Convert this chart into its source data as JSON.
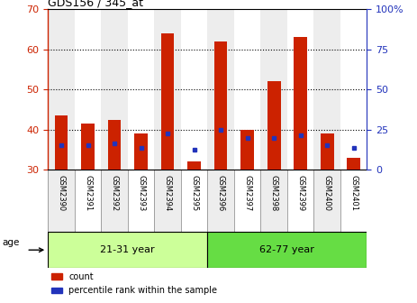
{
  "title": "GDS156 / 345_at",
  "samples": [
    "GSM2390",
    "GSM2391",
    "GSM2392",
    "GSM2393",
    "GSM2394",
    "GSM2395",
    "GSM2396",
    "GSM2397",
    "GSM2398",
    "GSM2399",
    "GSM2400",
    "GSM2401"
  ],
  "red_bar_top": [
    43.5,
    41.5,
    42.5,
    39.0,
    64.0,
    32.0,
    62.0,
    40.0,
    52.0,
    63.0,
    39.0,
    33.0
  ],
  "red_bar_bottom": 30.0,
  "blue_y": [
    36.0,
    36.0,
    36.5,
    35.5,
    39.0,
    35.0,
    40.0,
    38.0,
    38.0,
    38.5,
    36.0,
    35.5
  ],
  "ylim_left": [
    30,
    70
  ],
  "ylim_right": [
    0,
    100
  ],
  "yticks_left": [
    30,
    40,
    50,
    60,
    70
  ],
  "yticks_right": [
    0,
    25,
    50,
    75,
    100
  ],
  "ytick_labels_right": [
    "0",
    "25",
    "50",
    "75",
    "100%"
  ],
  "grid_lines": [
    40,
    50,
    60
  ],
  "group1_label": "21-31 year",
  "group2_label": "62-77 year",
  "group1_count": 6,
  "group2_count": 6,
  "age_label": "age",
  "legend_count": "count",
  "legend_percentile": "percentile rank within the sample",
  "red_color": "#CC2200",
  "blue_color": "#2233BB",
  "group1_bg": "#CCFF99",
  "group2_bg": "#66DD44",
  "col_bg_light": "#DDDDDD",
  "col_bg_white": "#FFFFFF",
  "bar_width": 0.5,
  "n_samples": 12
}
